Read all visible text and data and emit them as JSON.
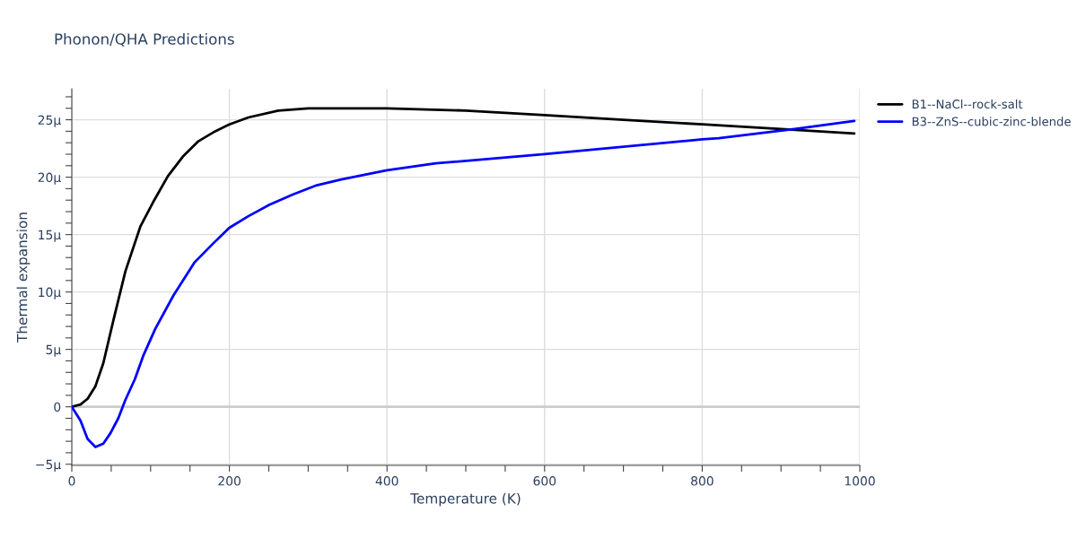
{
  "chart_data": {
    "type": "line",
    "title": "Phonon/QHA Predictions",
    "xlabel": "Temperature (K)",
    "ylabel": "Thermal expansion",
    "grid": true,
    "legend": "top right",
    "line_style": "solid",
    "marker": "none",
    "xlim": [
      0,
      1000
    ],
    "ylim": [
      -5.1,
      27.7
    ],
    "xticks": [
      0,
      {
        "value": 50,
        "label": null
      },
      {
        "value": 100,
        "label": null
      },
      {
        "value": 150,
        "label": null
      },
      200,
      {
        "value": 250,
        "label": null
      },
      {
        "value": 300,
        "label": null
      },
      {
        "value": 350,
        "label": null
      },
      400,
      {
        "value": 450,
        "label": null
      },
      {
        "value": 500,
        "label": null
      },
      {
        "value": 550,
        "label": null
      },
      600,
      {
        "value": 650,
        "label": null
      },
      {
        "value": 700,
        "label": null
      },
      {
        "value": 750,
        "label": null
      },
      800,
      {
        "value": 850,
        "label": null
      },
      {
        "value": 900,
        "label": null
      },
      {
        "value": 950,
        "label": null
      },
      1000
    ],
    "yticks": [
      {
        "value": -5,
        "label": "−5µ"
      },
      {
        "value": -4,
        "label": null
      },
      {
        "value": -3,
        "label": null
      },
      {
        "value": -2,
        "label": null
      },
      {
        "value": -1,
        "label": null
      },
      0,
      {
        "value": 1,
        "label": null
      },
      {
        "value": 2,
        "label": null
      },
      {
        "value": 3,
        "label": null
      },
      {
        "value": 4,
        "label": null
      },
      {
        "value": 5,
        "label": "5µ"
      },
      {
        "value": 6,
        "label": null
      },
      {
        "value": 7,
        "label": null
      },
      {
        "value": 8,
        "label": null
      },
      {
        "value": 9,
        "label": null
      },
      {
        "value": 10,
        "label": "10µ"
      },
      {
        "value": 11,
        "label": null
      },
      {
        "value": 12,
        "label": null
      },
      {
        "value": 13,
        "label": null
      },
      {
        "value": 14,
        "label": null
      },
      {
        "value": 15,
        "label": "15µ"
      },
      {
        "value": 16,
        "label": null
      },
      {
        "value": 17,
        "label": null
      },
      {
        "value": 18,
        "label": null
      },
      {
        "value": 19,
        "label": null
      },
      {
        "value": 20,
        "label": "20µ"
      },
      {
        "value": 21,
        "label": null
      },
      {
        "value": 22,
        "label": null
      },
      {
        "value": 23,
        "label": null
      },
      {
        "value": 24,
        "label": null
      },
      {
        "value": 25,
        "label": "25µ"
      },
      {
        "value": 26,
        "label": null
      },
      {
        "value": 27,
        "label": null
      }
    ],
    "ref_lines": [
      {
        "axis": "y",
        "value": 0,
        "color": "#cccccc"
      }
    ],
    "series": [
      {
        "name": "B1--NaCl--rock-salt",
        "color": "#000000",
        "x": [
          0,
          11,
          20,
          30,
          40,
          53,
          68,
          87,
          103,
          122,
          141,
          160,
          182,
          200,
          224,
          262,
          300,
          342,
          400,
          500,
          600,
          700,
          800,
          900,
          993
        ],
        "values": [
          0,
          0.2,
          0.7,
          1.8,
          3.8,
          7.6,
          11.8,
          15.7,
          17.8,
          20.1,
          21.8,
          23.1,
          24.0,
          24.6,
          25.2,
          25.8,
          26.0,
          26.0,
          26.0,
          25.8,
          25.4,
          25.0,
          24.6,
          24.2,
          23.8
        ]
      },
      {
        "name": "B3--ZnS--cubic-zinc-blende",
        "color": "#0000ff",
        "x": [
          0,
          11,
          20,
          30,
          40,
          49,
          59,
          68,
          80,
          91,
          106,
          129,
          156,
          179,
          200,
          224,
          251,
          281,
          311,
          342,
          400,
          462,
          600,
          800,
          821,
          917,
          993
        ],
        "values": [
          0,
          -1.2,
          -2.8,
          -3.5,
          -3.2,
          -2.3,
          -1.0,
          0.6,
          2.4,
          4.5,
          6.8,
          9.7,
          12.6,
          14.2,
          15.6,
          16.6,
          17.6,
          18.5,
          19.3,
          19.8,
          20.6,
          21.2,
          22.0,
          23.3,
          23.4,
          24.2,
          24.9
        ]
      }
    ]
  }
}
